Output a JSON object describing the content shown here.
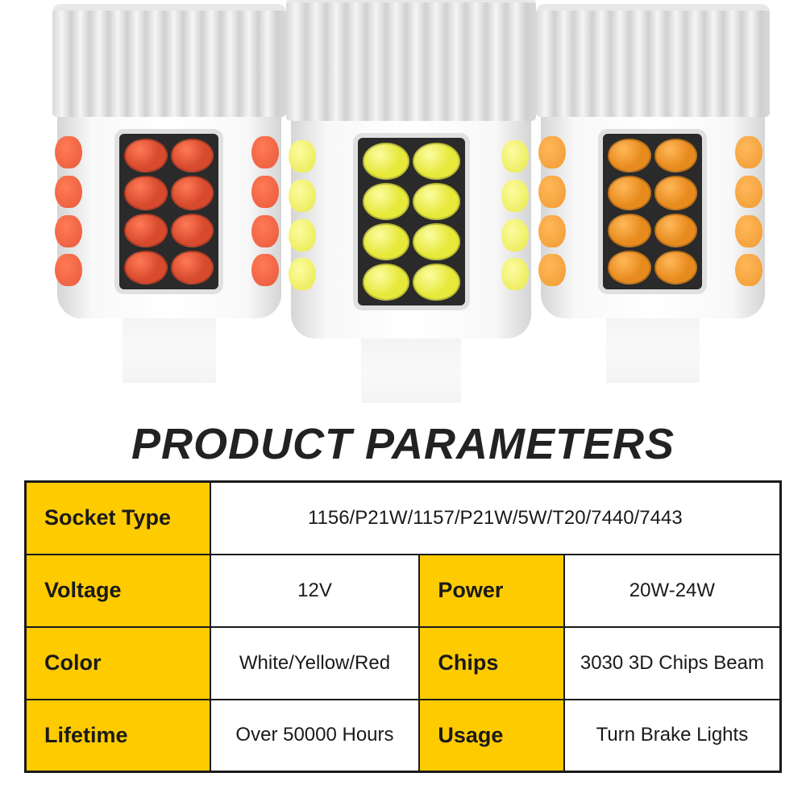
{
  "title": "PRODUCT PARAMETERS",
  "bulbs": {
    "left": {
      "led_color": "#d84a2e",
      "led_hl": "#ff7a55",
      "side_color": "#e85a3c"
    },
    "center": {
      "led_color": "#e6e83a",
      "led_hl": "#fcfca0",
      "side_color": "#e8e84a"
    },
    "right": {
      "led_color": "#e88b1e",
      "led_hl": "#ffb85a",
      "side_color": "#f09a30"
    }
  },
  "colors": {
    "label_bg": "#fecb00",
    "value_bg": "#ffffff",
    "border": "#1a1a1a",
    "text": "#1a1a1a",
    "title_text": "#222222"
  },
  "table": {
    "row1": {
      "label": "Socket Type",
      "value": "1156/P21W/1157/P21W/5W/T20/7440/7443"
    },
    "row2": {
      "label1": "Voltage",
      "value1": "12V",
      "label2": "Power",
      "value2": "20W-24W"
    },
    "row3": {
      "label1": "Color",
      "value1": "White/Yellow/Red",
      "label2": "Chips",
      "value2": "3030 3D Chips Beam"
    },
    "row4": {
      "label1": "Lifetime",
      "value1": "Over 50000 Hours",
      "label2": "Usage",
      "value2": "Turn Brake Lights"
    }
  },
  "typography": {
    "title_fontsize": 54,
    "label_fontsize": 27,
    "value_fontsize": 24
  }
}
